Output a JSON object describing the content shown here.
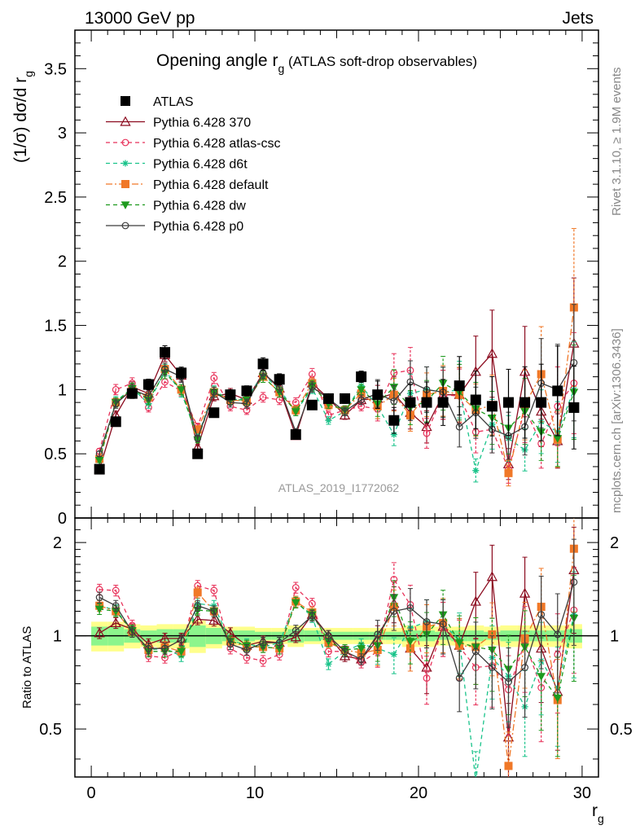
{
  "header": {
    "left": "13000 GeV pp",
    "right": "Jets"
  },
  "title": {
    "main": "Opening angle r",
    "sub": "g",
    "rest": " (ATLAS soft-drop observables)"
  },
  "side": {
    "rivet": "Rivet 3.1.10, ≥ 1.9M events",
    "mcplots": "mcplots.cern.ch [arXiv:1306.3436]"
  },
  "analysis": "ATLAS_2019_I1772062",
  "axes": {
    "ylabel_top": "(1/σ) dσ/d r",
    "ylabel_top_sub": "g",
    "ylabel_bottom": "Ratio to ATLAS",
    "xlabel": "r",
    "xlabel_sub": "g"
  },
  "colors": {
    "ATLAS": "#000000",
    "Pythia 6.428 370": "#8b0a1e",
    "Pythia 6.428 atlas-csc": "#e8325a",
    "Pythia 6.428 d6t": "#19c38a",
    "Pythia 6.428 default": "#f07828",
    "Pythia 6.428 dw": "#1e9a1e",
    "Pythia 6.428 p0": "#3c3c3c",
    "band_inner": "#8cf58c",
    "band_outer": "#ffff8c"
  },
  "chart_data": [
    {
      "type": "line",
      "title": "Opening angle r_g (ATLAS soft-drop observables)",
      "xlabel": "r_g",
      "ylabel": "(1/σ) dσ/d r_g",
      "xlim": [
        -1,
        31
      ],
      "ylim": [
        0,
        3.8
      ],
      "yticks": [
        0,
        0.5,
        1,
        1.5,
        2,
        2.5,
        3,
        3.5
      ],
      "xticks": [
        0,
        10,
        20,
        30
      ],
      "legend_position": "top-left",
      "x": [
        0.5,
        1.5,
        2.5,
        3.5,
        4.5,
        5.5,
        6.5,
        7.5,
        8.5,
        9.5,
        10.5,
        11.5,
        12.5,
        13.5,
        14.5,
        15.5,
        16.5,
        17.5,
        18.5,
        19.5,
        20.5,
        21.5,
        22.5,
        23.5,
        24.5,
        25.5,
        26.5,
        27.5,
        28.5,
        29.5
      ],
      "series": [
        {
          "name": "ATLAS",
          "values": [
            0.38,
            0.75,
            0.97,
            1.04,
            1.29,
            1.13,
            0.5,
            0.82,
            0.96,
            0.99,
            1.2,
            1.08,
            0.65,
            0.88,
            0.93,
            0.93,
            1.1,
            0.96,
            0.76,
            0.9,
            0.9,
            0.9,
            1.03,
            0.92,
            0.87,
            0.9,
            0.9,
            0.9,
            0.99,
            0.86
          ]
        },
        {
          "name": "Pythia 6.428 370",
          "values": [
            0.38,
            0.8,
            1.02,
            0.97,
            1.27,
            1.11,
            0.55,
            0.95,
            0.97,
            0.92,
            1.13,
            1.01,
            0.64,
            1.05,
            0.93,
            0.8,
            0.92,
            0.93,
            0.97,
            0.82,
            0.71,
            0.96,
            0.96,
            1.14,
            1.28,
            0.42,
            1.14,
            0.83,
            0.6,
            1.36
          ]
        },
        {
          "name": "Pythia 6.428 atlas-csc",
          "values": [
            0.52,
            1.0,
            1.05,
            0.86,
            1.06,
            0.99,
            0.71,
            1.09,
            0.87,
            0.84,
            0.94,
            0.92,
            0.9,
            1.12,
            0.8,
            0.84,
            0.87,
            0.85,
            1.13,
            1.15,
            0.66,
            0.96,
            0.95,
            0.67,
            0.69,
            0.38,
            0.85,
            0.58,
            0.87,
            1.05
          ]
        },
        {
          "name": "Pythia 6.428 d6t",
          "values": [
            0.46,
            0.91,
            1.01,
            0.89,
            1.15,
            0.98,
            0.63,
            0.99,
            0.92,
            0.93,
            1.12,
            1.0,
            0.83,
            1.01,
            0.76,
            0.83,
            1.03,
            0.87,
            0.65,
            0.97,
            1.0,
            0.98,
            1.0,
            0.37,
            0.73,
            0.62,
            0.53,
            0.75,
            0.67,
            1.0
          ]
        },
        {
          "name": "Pythia 6.428 default",
          "values": [
            0.46,
            0.9,
            1.0,
            0.94,
            1.16,
            1.0,
            0.69,
            0.98,
            0.92,
            0.91,
            1.1,
            0.98,
            0.84,
            1.05,
            0.88,
            0.84,
            0.97,
            0.87,
            0.96,
            0.8,
            0.96,
            0.99,
            0.96,
            0.84,
            0.88,
            0.35,
            0.88,
            1.12,
            0.61,
            1.64
          ]
        },
        {
          "name": "Pythia 6.428 dw",
          "values": [
            0.45,
            0.9,
            1.01,
            0.92,
            1.13,
            1.0,
            0.61,
            0.98,
            0.92,
            0.92,
            1.1,
            0.98,
            0.83,
            1.03,
            0.89,
            0.84,
            1.0,
            0.89,
            1.02,
            0.86,
            0.91,
            1.05,
            0.98,
            0.85,
            0.78,
            0.7,
            0.83,
            0.67,
            0.62,
            0.98
          ]
        },
        {
          "name": "Pythia 6.428 p0",
          "values": [
            0.5,
            0.89,
            1.0,
            0.95,
            1.16,
            1.1,
            0.62,
            0.98,
            0.9,
            0.89,
            1.13,
            1.02,
            0.67,
            1.02,
            0.93,
            0.83,
            0.92,
            0.97,
            0.91,
            1.06,
            1.0,
            0.98,
            0.71,
            0.82,
            0.69,
            0.64,
            0.71,
            1.05,
            1.0,
            1.21
          ]
        }
      ]
    },
    {
      "type": "line",
      "ylabel": "Ratio to ATLAS",
      "xlabel": "r_g",
      "scale": "log",
      "xlim": [
        -1,
        31
      ],
      "ylim": [
        0.35,
        2.4
      ],
      "yticks": [
        0.5,
        1,
        2
      ],
      "x": [
        0.5,
        1.5,
        2.5,
        3.5,
        4.5,
        5.5,
        6.5,
        7.5,
        8.5,
        9.5,
        10.5,
        11.5,
        12.5,
        13.5,
        14.5,
        15.5,
        16.5,
        17.5,
        18.5,
        19.5,
        20.5,
        21.5,
        22.5,
        23.5,
        24.5,
        25.5,
        26.5,
        27.5,
        28.5,
        29.5
      ],
      "band_inner_halfwidth": [
        0.07,
        0.07,
        0.05,
        0.04,
        0.05,
        0.05,
        0.08,
        0.06,
        0.04,
        0.04,
        0.03,
        0.03,
        0.05,
        0.04,
        0.03,
        0.03,
        0.03,
        0.03,
        0.03,
        0.04,
        0.04,
        0.03,
        0.04,
        0.04,
        0.03,
        0.04,
        0.04,
        0.04,
        0.04,
        0.05
      ],
      "band_outer_halfwidth": [
        0.11,
        0.11,
        0.09,
        0.08,
        0.09,
        0.09,
        0.12,
        0.09,
        0.07,
        0.07,
        0.06,
        0.06,
        0.08,
        0.06,
        0.06,
        0.06,
        0.06,
        0.06,
        0.06,
        0.08,
        0.08,
        0.07,
        0.07,
        0.08,
        0.07,
        0.08,
        0.08,
        0.08,
        0.08,
        0.09
      ],
      "series": [
        {
          "name": "Pythia 6.428 370",
          "values": [
            1.02,
            1.1,
            1.05,
            0.94,
            0.98,
            0.98,
            1.13,
            1.12,
            1.02,
            0.93,
            0.96,
            0.95,
            0.99,
            1.17,
            1.0,
            0.86,
            0.84,
            0.97,
            1.27,
            0.91,
            0.79,
            1.07,
            0.93,
            1.29,
            1.55,
            0.47,
            1.37,
            0.91,
            0.66,
            1.63
          ]
        },
        {
          "name": "Pythia 6.428 atlas-csc",
          "values": [
            1.41,
            1.4,
            1.08,
            0.86,
            0.85,
            0.9,
            1.45,
            1.4,
            0.91,
            0.85,
            0.83,
            0.87,
            1.43,
            1.27,
            0.89,
            0.89,
            0.82,
            0.89,
            1.52,
            1.26,
            0.73,
            1.07,
            0.92,
            0.79,
            0.8,
            0.67,
            0.95,
            0.68,
            0.87,
            1.21
          ]
        },
        {
          "name": "Pythia 6.428 d6t",
          "values": [
            1.25,
            1.21,
            1.04,
            0.9,
            0.91,
            0.86,
            1.27,
            1.25,
            0.96,
            0.94,
            0.92,
            0.95,
            1.29,
            1.15,
            0.81,
            0.89,
            0.94,
            0.91,
            0.87,
            1.06,
            1.11,
            1.09,
            0.97,
            0.34,
            0.85,
            0.74,
            0.59,
            0.83,
            0.68,
            1.17
          ]
        },
        {
          "name": "Pythia 6.428 default",
          "values": [
            1.25,
            1.2,
            1.03,
            0.9,
            0.92,
            0.89,
            1.38,
            1.2,
            0.96,
            0.92,
            0.92,
            0.91,
            1.29,
            1.19,
            0.95,
            0.9,
            0.88,
            0.9,
            1.24,
            0.91,
            1.07,
            1.1,
            0.93,
            0.92,
            1.01,
            0.38,
            0.98,
            1.24,
            0.62,
            1.91
          ]
        },
        {
          "name": "Pythia 6.428 dw",
          "values": [
            1.22,
            1.2,
            1.04,
            0.89,
            0.89,
            0.89,
            1.21,
            1.2,
            0.96,
            0.93,
            0.92,
            0.91,
            1.28,
            1.17,
            0.96,
            0.9,
            0.91,
            0.93,
            1.33,
            0.96,
            1.01,
            1.17,
            0.95,
            0.92,
            0.9,
            0.78,
            0.92,
            0.74,
            0.63,
            1.14
          ]
        },
        {
          "name": "Pythia 6.428 p0",
          "values": [
            1.33,
            1.25,
            1.03,
            0.91,
            0.91,
            0.97,
            1.25,
            1.2,
            0.94,
            0.9,
            0.95,
            0.95,
            1.04,
            1.16,
            1.0,
            0.89,
            0.84,
            1.01,
            1.2,
            1.23,
            1.11,
            1.09,
            0.73,
            0.89,
            0.79,
            0.71,
            0.79,
            1.17,
            1.01,
            1.49
          ]
        }
      ]
    }
  ]
}
